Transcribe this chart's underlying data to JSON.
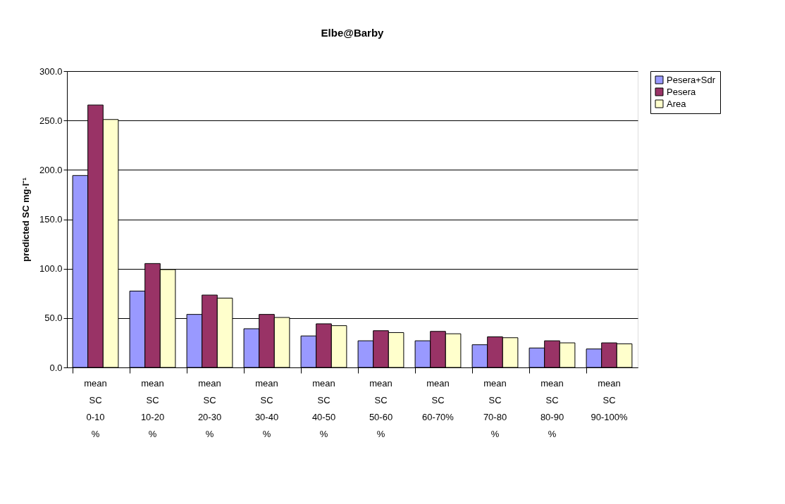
{
  "chart_data": {
    "type": "bar",
    "title": "Elbe@Barby",
    "ylabel": "predicted SC mg·l⁻¹",
    "categories": [
      "mean SC 0-10 %",
      "mean SC 10-20 %",
      "mean SC 20-30 %",
      "mean SC 30-40 %",
      "mean SC 40-50 %",
      "mean SC 50-60 %",
      "mean SC 60-70%",
      "mean SC 70-80 %",
      "mean SC 80-90 %",
      "mean SC 90-100%"
    ],
    "series": [
      {
        "name": "Pesera+Sdr",
        "color": "#9999ff",
        "values": [
          194.3,
          77.3,
          53.7,
          39.2,
          31.9,
          27.0,
          27.0,
          23.0,
          19.7,
          18.7
        ]
      },
      {
        "name": "Pesera",
        "color": "#993366",
        "values": [
          265.7,
          105.2,
          73.3,
          53.7,
          44.2,
          37.2,
          36.5,
          31.0,
          27.0,
          24.9
        ]
      },
      {
        "name": "Area",
        "color": "#ffffcc",
        "values": [
          251.0,
          99.1,
          70.2,
          50.6,
          42.3,
          35.3,
          34.1,
          30.1,
          24.9,
          23.9
        ]
      }
    ],
    "ylim": [
      0,
      300
    ],
    "yticks": [
      {
        "value": 0,
        "label": "0.0"
      },
      {
        "value": 50,
        "label": "50.0"
      },
      {
        "value": 100,
        "label": "100.0"
      },
      {
        "value": 150,
        "label": "150.0"
      },
      {
        "value": 200,
        "label": "200.0"
      },
      {
        "value": 250,
        "label": "250.0"
      },
      {
        "value": 300,
        "label": "300.0"
      }
    ],
    "grid": "y",
    "legend": "right"
  }
}
